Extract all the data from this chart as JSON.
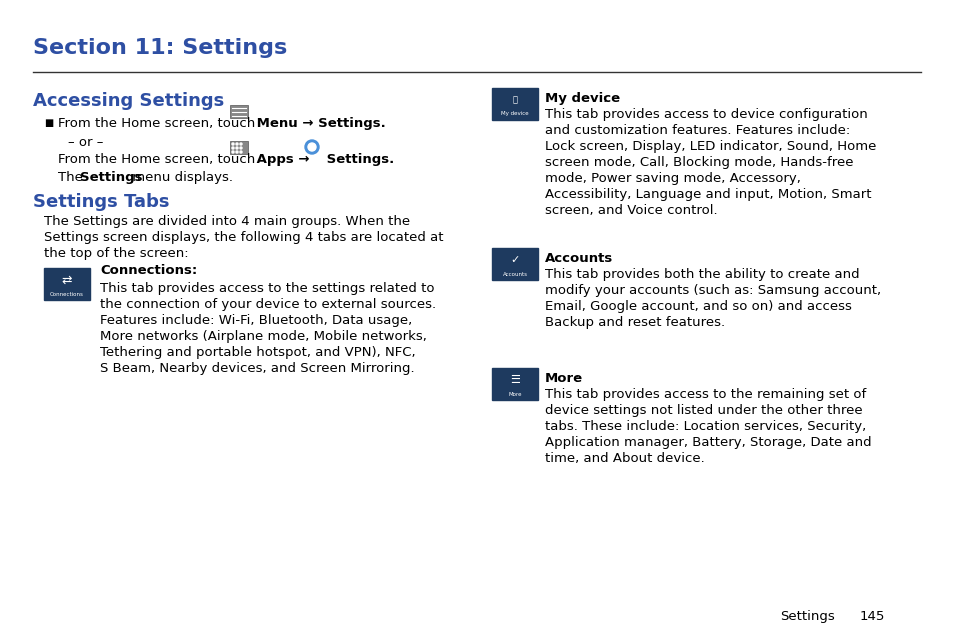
{
  "background_color": "#ffffff",
  "section_title": "Section 11: Settings",
  "section_title_color": "#2e4fa3",
  "accessing_title": "Accessing Settings",
  "accessing_title_color": "#2e4fa3",
  "settings_tabs_title": "Settings Tabs",
  "settings_tabs_title_color": "#2e4fa3",
  "icon_bg_color": "#1e3a5f",
  "body_color": "#000000",
  "footer_color": "#000000"
}
